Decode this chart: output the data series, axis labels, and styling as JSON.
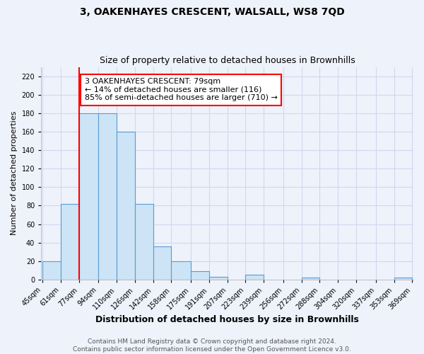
{
  "title": "3, OAKENHAYES CRESCENT, WALSALL, WS8 7QD",
  "subtitle": "Size of property relative to detached houses in Brownhills",
  "xlabel": "Distribution of detached houses by size in Brownhills",
  "ylabel": "Number of detached properties",
  "bar_left_edges": [
    45,
    61,
    77,
    94,
    110,
    126,
    142,
    158,
    175,
    191,
    207,
    223,
    239,
    256,
    272,
    288,
    304,
    320,
    337,
    353
  ],
  "bar_widths": [
    16,
    16,
    17,
    16,
    16,
    16,
    16,
    17,
    16,
    16,
    16,
    16,
    17,
    16,
    16,
    16,
    16,
    17,
    16,
    16
  ],
  "bar_heights": [
    20,
    82,
    180,
    180,
    160,
    82,
    36,
    20,
    9,
    3,
    0,
    5,
    0,
    0,
    2,
    0,
    0,
    0,
    0,
    2
  ],
  "bar_color": "#cce4f5",
  "bar_edge_color": "#5b9bd5",
  "tick_labels": [
    "45sqm",
    "61sqm",
    "77sqm",
    "94sqm",
    "110sqm",
    "126sqm",
    "142sqm",
    "158sqm",
    "175sqm",
    "191sqm",
    "207sqm",
    "223sqm",
    "239sqm",
    "256sqm",
    "272sqm",
    "288sqm",
    "304sqm",
    "320sqm",
    "337sqm",
    "353sqm",
    "369sqm"
  ],
  "tick_positions": [
    45,
    61,
    77,
    94,
    110,
    126,
    142,
    158,
    175,
    191,
    207,
    223,
    239,
    256,
    272,
    288,
    304,
    320,
    337,
    353,
    369
  ],
  "ylim": [
    0,
    230
  ],
  "yticks": [
    0,
    20,
    40,
    60,
    80,
    100,
    120,
    140,
    160,
    180,
    200,
    220
  ],
  "property_line_x": 77,
  "annotation_text": "3 OAKENHAYES CRESCENT: 79sqm\n← 14% of detached houses are smaller (116)\n85% of semi-detached houses are larger (710) →",
  "footer_line1": "Contains HM Land Registry data © Crown copyright and database right 2024.",
  "footer_line2": "Contains public sector information licensed under the Open Government Licence v3.0.",
  "background_color": "#eef2fb",
  "grid_color": "#d0d8ee",
  "title_fontsize": 10,
  "subtitle_fontsize": 9,
  "xlabel_fontsize": 9,
  "ylabel_fontsize": 8,
  "tick_fontsize": 7,
  "annotation_fontsize": 8,
  "footer_fontsize": 6.5
}
